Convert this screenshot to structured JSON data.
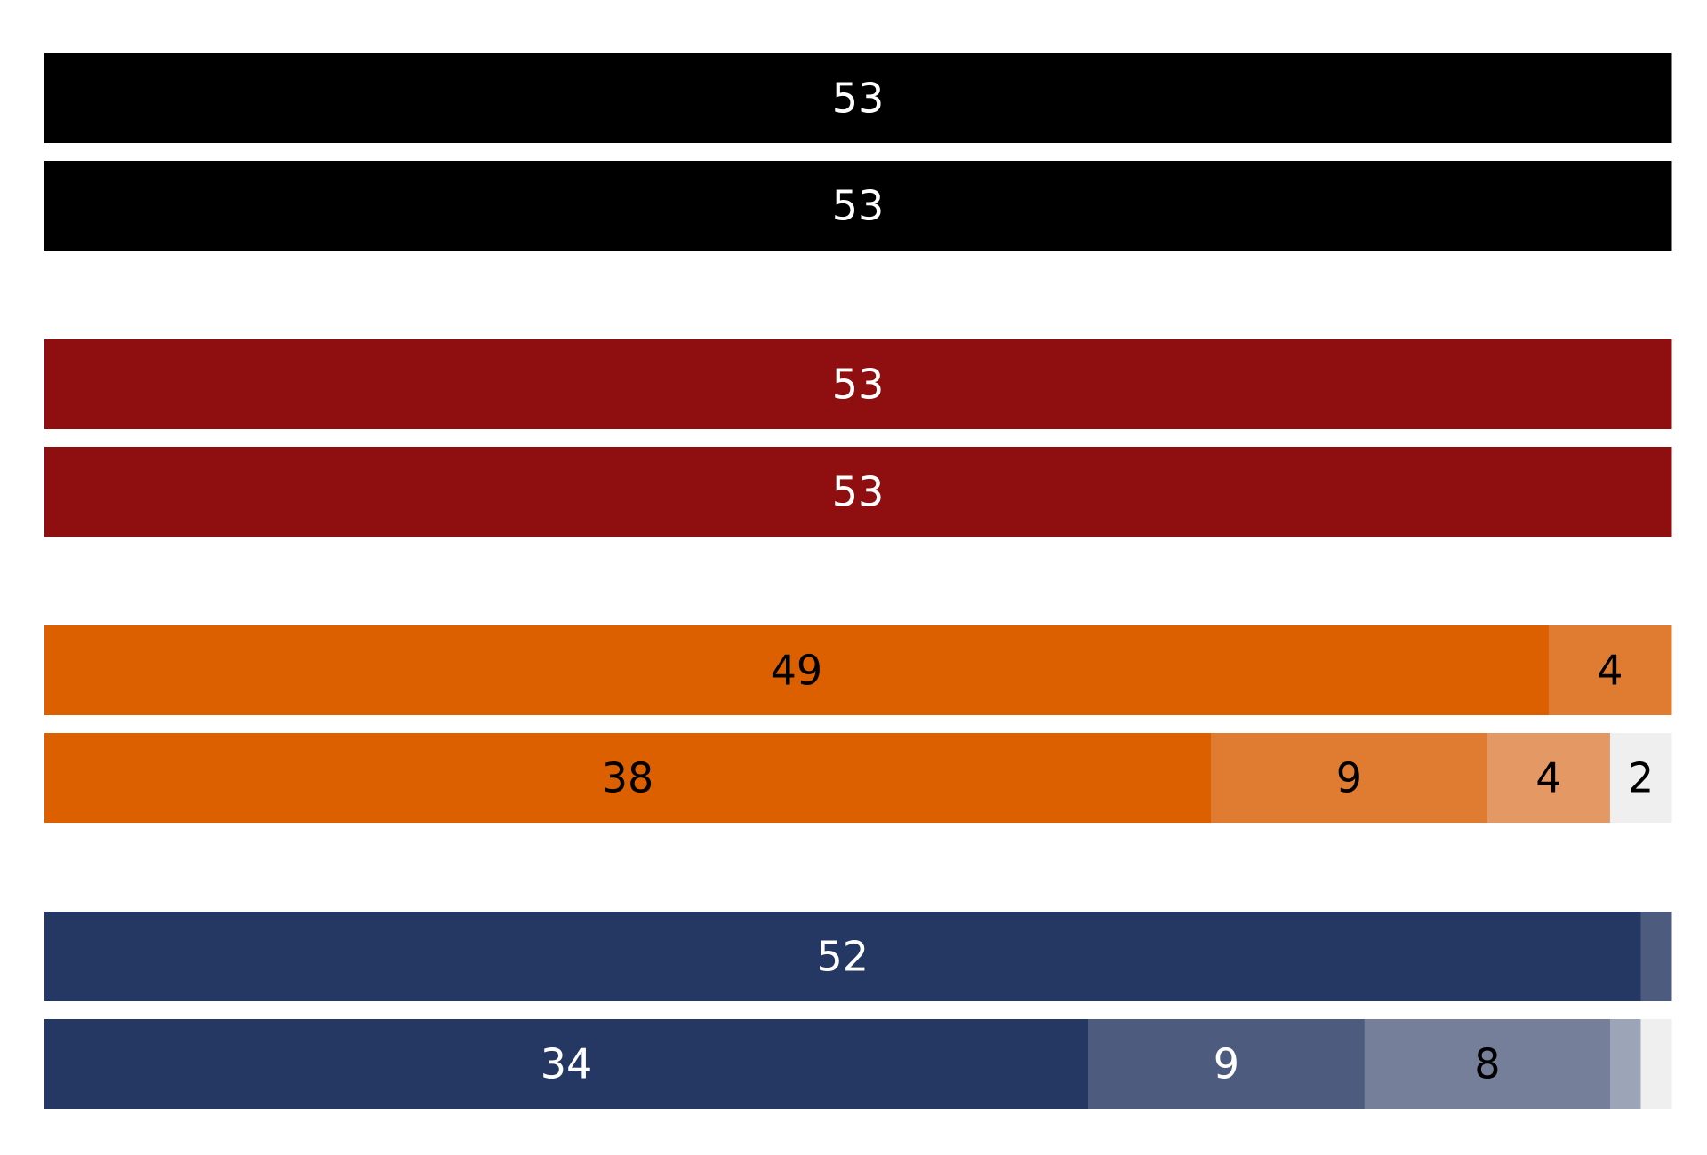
{
  "chart_data": {
    "type": "bar",
    "orientation": "horizontal",
    "stacked": true,
    "total": 53,
    "xlim": [
      0,
      53
    ],
    "grid": false,
    "legend": "none",
    "groups": [
      {
        "rows": [
          {
            "segments": [
              {
                "value": 53,
                "label": "53",
                "color": "#000000",
                "label_color": "#ffffff"
              }
            ]
          },
          {
            "segments": [
              {
                "value": 53,
                "label": "53",
                "color": "#000000",
                "label_color": "#ffffff"
              }
            ]
          }
        ]
      },
      {
        "rows": [
          {
            "segments": [
              {
                "value": 53,
                "label": "53",
                "color": "#8f0e0f",
                "label_color": "#ffffff"
              }
            ]
          },
          {
            "segments": [
              {
                "value": 53,
                "label": "53",
                "color": "#8f0e0f",
                "label_color": "#ffffff"
              }
            ]
          }
        ]
      },
      {
        "rows": [
          {
            "segments": [
              {
                "value": 49,
                "label": "49",
                "color": "#dc6000",
                "label_color": "#000000"
              },
              {
                "value": 4,
                "label": "4",
                "color": "#e07c31",
                "label_color": "#000000"
              }
            ]
          },
          {
            "segments": [
              {
                "value": 38,
                "label": "38",
                "color": "#dc6000",
                "label_color": "#000000"
              },
              {
                "value": 9,
                "label": "9",
                "color": "#e07c31",
                "label_color": "#000000"
              },
              {
                "value": 4,
                "label": "4",
                "color": "#e49964",
                "label_color": "#000000"
              },
              {
                "value": 2,
                "label": "2",
                "color": "#efefef",
                "label_color": "#000000"
              }
            ]
          }
        ]
      },
      {
        "rows": [
          {
            "segments": [
              {
                "value": 52,
                "label": "52",
                "color": "#253763",
                "label_color": "#ffffff"
              },
              {
                "value": 1,
                "label": "",
                "color": "#4d5b7e",
                "label_color": "#ffffff"
              }
            ]
          },
          {
            "segments": [
              {
                "value": 34,
                "label": "34",
                "color": "#253763",
                "label_color": "#ffffff"
              },
              {
                "value": 9,
                "label": "9",
                "color": "#4d5b7e",
                "label_color": "#ffffff"
              },
              {
                "value": 8,
                "label": "8",
                "color": "#767f99",
                "label_color": "#000000"
              },
              {
                "value": 1,
                "label": "",
                "color": "#9ca4b8",
                "label_color": "#000000"
              },
              {
                "value": 1,
                "label": "",
                "color": "#efefef",
                "label_color": "#000000"
              }
            ]
          }
        ]
      }
    ]
  }
}
